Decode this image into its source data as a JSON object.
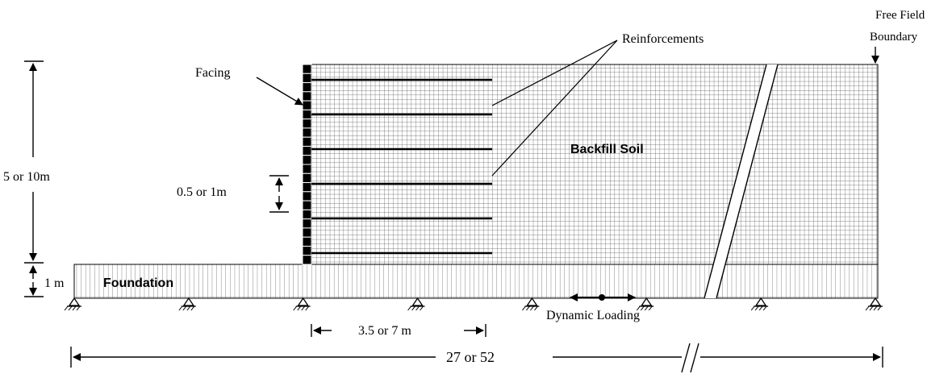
{
  "labels": {
    "free_field_line1": "Free Field",
    "free_field_line2": "Boundary",
    "reinforcements": "Reinforcements",
    "facing": "Facing",
    "backfill_soil": "Backfill Soil",
    "foundation": "Foundation",
    "height_total": "5 or 10m",
    "spacing": "0.5 or 1m",
    "foundation_depth": "1 m",
    "reinf_length": "3.5 or 7 m",
    "model_length": "27 or 52",
    "dynamic_loading": "Dynamic Loading"
  },
  "model": {
    "reinforcement_layers": 6,
    "support_count": 8
  },
  "colors": {
    "line": "#000000",
    "mesh": "#555555",
    "background": "#ffffff"
  }
}
